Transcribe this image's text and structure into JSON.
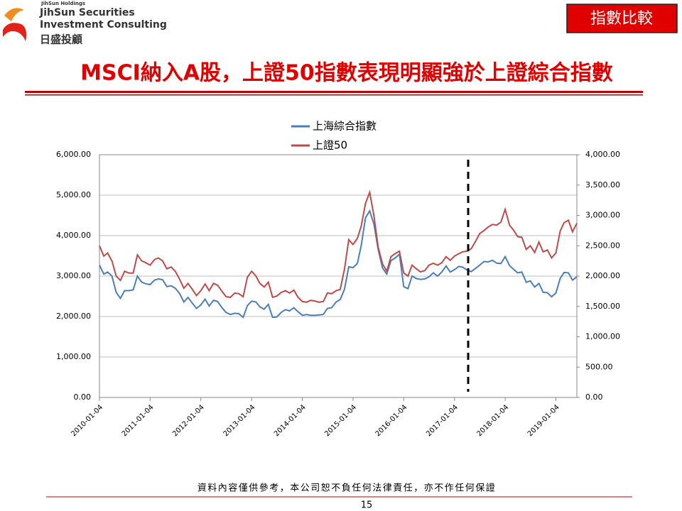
{
  "header": {
    "logo_small": "JihSun Holdings",
    "logo_line1": "JihSun Securities",
    "logo_line2": "Investment Consulting",
    "logo_cn": "日盛投顧",
    "badge": "指數比較",
    "title": "MSCI納入A股，上證50指數表現明顯強於上證綜合指數"
  },
  "chart_data": {
    "type": "line",
    "x": [
      "2010-01-04",
      "2010-02-04",
      "2010-03-04",
      "2010-04-04",
      "2010-05-04",
      "2010-06-04",
      "2010-07-04",
      "2010-08-04",
      "2010-09-04",
      "2010-10-04",
      "2010-11-04",
      "2010-12-04",
      "2011-01-04",
      "2011-02-04",
      "2011-03-04",
      "2011-04-04",
      "2011-05-04",
      "2011-06-04",
      "2011-07-04",
      "2011-08-04",
      "2011-09-04",
      "2011-10-04",
      "2011-11-04",
      "2011-12-04",
      "2012-01-04",
      "2012-02-04",
      "2012-03-04",
      "2012-04-04",
      "2012-05-04",
      "2012-06-04",
      "2012-07-04",
      "2012-08-04",
      "2012-09-04",
      "2012-10-04",
      "2012-11-04",
      "2012-12-04",
      "2013-01-04",
      "2013-02-04",
      "2013-03-04",
      "2013-04-04",
      "2013-05-04",
      "2013-06-04",
      "2013-07-04",
      "2013-08-04",
      "2013-09-04",
      "2013-10-04",
      "2013-11-04",
      "2013-12-04",
      "2014-01-04",
      "2014-02-04",
      "2014-03-04",
      "2014-04-04",
      "2014-05-04",
      "2014-06-04",
      "2014-07-04",
      "2014-08-04",
      "2014-09-04",
      "2014-10-04",
      "2014-11-04",
      "2014-12-04",
      "2015-01-04",
      "2015-02-04",
      "2015-03-04",
      "2015-04-04",
      "2015-05-04",
      "2015-06-04",
      "2015-07-04",
      "2015-08-04",
      "2015-09-04",
      "2015-10-04",
      "2015-11-04",
      "2015-12-04",
      "2016-01-04",
      "2016-02-04",
      "2016-03-04",
      "2016-04-04",
      "2016-05-04",
      "2016-06-04",
      "2016-07-04",
      "2016-08-04",
      "2016-09-04",
      "2016-10-04",
      "2016-11-04",
      "2016-12-04",
      "2017-01-04",
      "2017-02-04",
      "2017-03-04",
      "2017-04-04",
      "2017-05-04",
      "2017-06-04",
      "2017-07-04",
      "2017-08-04",
      "2017-09-04",
      "2017-10-04",
      "2017-11-04",
      "2017-12-04",
      "2018-01-04",
      "2018-02-04",
      "2018-03-04",
      "2018-04-04",
      "2018-05-04",
      "2018-06-04",
      "2018-07-04",
      "2018-08-04",
      "2018-09-04",
      "2018-10-04",
      "2018-11-04",
      "2018-12-04",
      "2019-01-04",
      "2019-02-04",
      "2019-03-04",
      "2019-04-04",
      "2019-05-04",
      "2019-06-04"
    ],
    "series": [
      {
        "name": "上海綜合指數",
        "color": "#4a7ebb",
        "axis": "y",
        "values": [
          3270,
          3050,
          3100,
          3000,
          2600,
          2450,
          2640,
          2640,
          2660,
          3000,
          2850,
          2810,
          2790,
          2900,
          2930,
          2910,
          2740,
          2760,
          2700,
          2570,
          2360,
          2470,
          2330,
          2200,
          2290,
          2430,
          2260,
          2400,
          2370,
          2220,
          2100,
          2050,
          2080,
          2070,
          1980,
          2270,
          2380,
          2360,
          2240,
          2180,
          2300,
          1980,
          1990,
          2100,
          2170,
          2140,
          2220,
          2120,
          2030,
          2050,
          2030,
          2030,
          2040,
          2050,
          2200,
          2220,
          2360,
          2420,
          2680,
          3230,
          3210,
          3310,
          3750,
          4440,
          4610,
          4280,
          3660,
          3200,
          3050,
          3380,
          3450,
          3540,
          2740,
          2690,
          3000,
          2940,
          2920,
          2930,
          2980,
          3080,
          3000,
          3100,
          3250,
          3100,
          3160,
          3240,
          3220,
          3150,
          3110,
          3190,
          3270,
          3360,
          3350,
          3390,
          3320,
          3310,
          3480,
          3260,
          3170,
          3080,
          3100,
          2850,
          2880,
          2730,
          2820,
          2600,
          2590,
          2490,
          2580,
          2940,
          3090,
          3080,
          2900,
          2980
        ]
      },
      {
        "name": "上證50",
        "color": "#be4b48",
        "axis": "y2",
        "values": [
          2500,
          2330,
          2380,
          2250,
          2000,
          1930,
          2080,
          2050,
          2050,
          2350,
          2250,
          2220,
          2180,
          2270,
          2300,
          2250,
          2120,
          2150,
          2080,
          1950,
          1800,
          1880,
          1780,
          1680,
          1760,
          1870,
          1760,
          1880,
          1850,
          1750,
          1660,
          1650,
          1720,
          1710,
          1660,
          1980,
          2080,
          2000,
          1880,
          1820,
          1900,
          1650,
          1670,
          1730,
          1760,
          1720,
          1770,
          1650,
          1580,
          1570,
          1600,
          1590,
          1570,
          1580,
          1720,
          1710,
          1760,
          1780,
          2120,
          2600,
          2520,
          2620,
          2820,
          3200,
          3380,
          2990,
          2480,
          2200,
          2080,
          2320,
          2370,
          2410,
          2050,
          2000,
          2180,
          2120,
          2070,
          2090,
          2180,
          2210,
          2180,
          2220,
          2320,
          2260,
          2330,
          2370,
          2400,
          2410,
          2450,
          2570,
          2700,
          2750,
          2810,
          2850,
          2840,
          2890,
          3100,
          2840,
          2760,
          2650,
          2640,
          2440,
          2500,
          2390,
          2560,
          2400,
          2430,
          2300,
          2380,
          2740,
          2880,
          2920,
          2730,
          2870
        ]
      }
    ],
    "xlim": [
      "2010-01-04",
      "2019-06-04"
    ],
    "xticks": [
      "2010-01-04",
      "2011-01-04",
      "2012-01-04",
      "2013-01-04",
      "2014-01-04",
      "2015-01-04",
      "2016-01-04",
      "2017-01-04",
      "2018-01-04",
      "2019-01-04"
    ],
    "ylim": [
      0,
      6000
    ],
    "yticks": [
      {
        "value": 0,
        "label": "0.00"
      },
      {
        "value": 1000,
        "label": "1,000.00"
      },
      {
        "value": 2000,
        "label": "2,000.00"
      },
      {
        "value": 3000,
        "label": "3,000.00"
      },
      {
        "value": 4000,
        "label": "4,000.00"
      },
      {
        "value": 5000,
        "label": "5,000.00"
      },
      {
        "value": 6000,
        "label": "6,000.00"
      }
    ],
    "y2lim": [
      0,
      4000
    ],
    "y2ticks": [
      {
        "value": 0,
        "label": "0.00"
      },
      {
        "value": 500,
        "label": "500.00"
      },
      {
        "value": 1000,
        "label": "1,000.00"
      },
      {
        "value": 1500,
        "label": "1,500.00"
      },
      {
        "value": 2000,
        "label": "2,000.00"
      },
      {
        "value": 2500,
        "label": "2,500.00"
      },
      {
        "value": 3000,
        "label": "3,000.00"
      },
      {
        "value": 3500,
        "label": "3,500.00"
      },
      {
        "value": 4000,
        "label": "4,000.00"
      }
    ],
    "grid": true,
    "legend": "top"
  },
  "footer": {
    "disclaimer": "資料內容僅供參考，本公司恕不負任何法律責任，亦不作任何保證",
    "page": "15"
  }
}
